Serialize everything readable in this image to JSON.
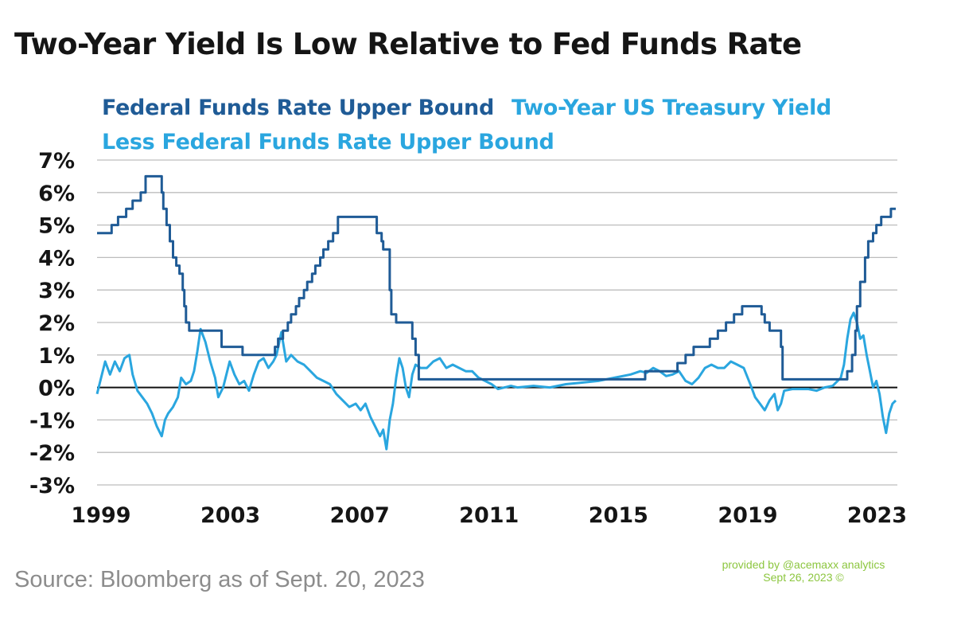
{
  "title": "Two-Year Yield Is Low Relative to Fed Funds Rate",
  "source": "Source: Bloomberg as of Sept. 20, 2023",
  "credit": {
    "line1": "provided by @acemaxx analytics",
    "line2": "Sept 26, 2023 ©",
    "color": "#8cc63f"
  },
  "chart_data": {
    "type": "line",
    "ylim": [
      -3,
      7
    ],
    "y_ticks": [
      7,
      6,
      5,
      4,
      3,
      2,
      1,
      0,
      -1,
      -2,
      -3
    ],
    "y_tick_labels": [
      "7%",
      "6%",
      "5%",
      "4%",
      "3%",
      "2%",
      "1%",
      "0%",
      "-1%",
      "-2%",
      "-3%"
    ],
    "xlim": [
      1999.0,
      2023.75
    ],
    "x_ticks": [
      1999,
      2003,
      2007,
      2011,
      2015,
      2019,
      2023
    ],
    "x_tick_labels": [
      "1999",
      "2003",
      "2007",
      "2011",
      "2015",
      "2019",
      "2023"
    ],
    "grid": true,
    "zero_line": true,
    "legend_position": "top-left",
    "series": [
      {
        "name": "Federal Funds Rate Upper Bound",
        "color": "#1f5b96",
        "step": true,
        "x": [
          1999.0,
          1999.45,
          1999.65,
          1999.9,
          2000.1,
          2000.35,
          2000.5,
          2001.0,
          2001.05,
          2001.15,
          2001.25,
          2001.35,
          2001.45,
          2001.55,
          2001.65,
          2001.7,
          2001.75,
          2001.85,
          2001.95,
          2002.85,
          2003.5,
          2004.5,
          2004.6,
          2004.75,
          2004.9,
          2005.0,
          2005.15,
          2005.25,
          2005.4,
          2005.5,
          2005.65,
          2005.75,
          2005.9,
          2006.0,
          2006.15,
          2006.3,
          2006.45,
          2007.65,
          2007.8,
          2007.85,
          2008.05,
          2008.1,
          2008.25,
          2008.75,
          2008.85,
          2008.95,
          2015.95,
          2016.95,
          2017.2,
          2017.45,
          2017.95,
          2018.2,
          2018.45,
          2018.7,
          2018.95,
          2019.55,
          2019.65,
          2019.8,
          2020.15,
          2020.2,
          2022.2,
          2022.35,
          2022.45,
          2022.5,
          2022.6,
          2022.75,
          2022.85,
          2023.0,
          2023.1,
          2023.25,
          2023.55,
          2023.7
        ],
        "y": [
          4.75,
          5.0,
          5.25,
          5.5,
          5.75,
          6.0,
          6.5,
          6.0,
          5.5,
          5.0,
          4.5,
          4.0,
          3.75,
          3.5,
          3.0,
          2.5,
          2.0,
          1.75,
          1.75,
          1.25,
          1.0,
          1.25,
          1.5,
          1.75,
          2.0,
          2.25,
          2.5,
          2.75,
          3.0,
          3.25,
          3.5,
          3.75,
          4.0,
          4.25,
          4.5,
          4.75,
          5.25,
          4.75,
          4.5,
          4.25,
          3.0,
          2.25,
          2.0,
          1.5,
          1.0,
          0.25,
          0.5,
          0.75,
          1.0,
          1.25,
          1.5,
          1.75,
          2.0,
          2.25,
          2.5,
          2.25,
          2.0,
          1.75,
          1.25,
          0.25,
          0.5,
          1.0,
          1.75,
          2.5,
          3.25,
          4.0,
          4.5,
          4.75,
          5.0,
          5.25,
          5.5,
          5.5
        ]
      },
      {
        "name": "Two-Year US Treasury Yield Less Federal Funds Rate Upper Bound",
        "color": "#2aa6df",
        "step": false,
        "x": [
          1999.0,
          1999.1,
          1999.25,
          1999.4,
          1999.55,
          1999.7,
          1999.85,
          2000.0,
          2000.1,
          2000.25,
          2000.4,
          2000.55,
          2000.7,
          2000.85,
          2001.0,
          2001.1,
          2001.2,
          2001.35,
          2001.5,
          2001.6,
          2001.75,
          2001.9,
          2002.0,
          2002.1,
          2002.2,
          2002.35,
          2002.5,
          2002.65,
          2002.75,
          2002.9,
          2003.1,
          2003.25,
          2003.4,
          2003.55,
          2003.7,
          2003.85,
          2004.0,
          2004.15,
          2004.3,
          2004.45,
          2004.55,
          2004.7,
          2004.85,
          2005.0,
          2005.2,
          2005.4,
          2005.6,
          2005.8,
          2006.0,
          2006.2,
          2006.4,
          2006.6,
          2006.8,
          2007.0,
          2007.15,
          2007.3,
          2007.45,
          2007.6,
          2007.75,
          2007.85,
          2007.95,
          2008.05,
          2008.15,
          2008.25,
          2008.35,
          2008.45,
          2008.55,
          2008.65,
          2008.75,
          2008.85,
          2009.0,
          2009.2,
          2009.4,
          2009.6,
          2009.8,
          2010.0,
          2010.2,
          2010.4,
          2010.6,
          2010.8,
          2011.0,
          2011.2,
          2011.4,
          2011.6,
          2011.8,
          2012.0,
          2012.5,
          2013.0,
          2013.5,
          2014.0,
          2014.5,
          2015.0,
          2015.5,
          2015.8,
          2016.0,
          2016.2,
          2016.4,
          2016.6,
          2016.8,
          2017.0,
          2017.2,
          2017.4,
          2017.6,
          2017.8,
          2018.0,
          2018.2,
          2018.4,
          2018.6,
          2018.8,
          2019.0,
          2019.2,
          2019.35,
          2019.5,
          2019.65,
          2019.8,
          2019.95,
          2020.05,
          2020.15,
          2020.25,
          2020.5,
          2020.75,
          2021.0,
          2021.25,
          2021.5,
          2021.75,
          2022.0,
          2022.1,
          2022.2,
          2022.3,
          2022.4,
          2022.5,
          2022.6,
          2022.7,
          2022.8,
          2022.9,
          2023.0,
          2023.1,
          2023.2,
          2023.3,
          2023.4,
          2023.5,
          2023.6,
          2023.7
        ],
        "y": [
          -0.2,
          0.2,
          0.8,
          0.4,
          0.8,
          0.5,
          0.9,
          1.0,
          0.4,
          -0.1,
          -0.3,
          -0.5,
          -0.8,
          -1.2,
          -1.5,
          -1.0,
          -0.8,
          -0.6,
          -0.3,
          0.3,
          0.1,
          0.2,
          0.5,
          1.1,
          1.8,
          1.4,
          0.8,
          0.3,
          -0.3,
          0.0,
          0.8,
          0.4,
          0.1,
          0.2,
          -0.1,
          0.4,
          0.8,
          0.9,
          0.6,
          0.8,
          1.0,
          1.7,
          0.8,
          1.0,
          0.8,
          0.7,
          0.5,
          0.3,
          0.2,
          0.1,
          -0.2,
          -0.4,
          -0.6,
          -0.5,
          -0.7,
          -0.5,
          -0.9,
          -1.2,
          -1.5,
          -1.3,
          -1.9,
          -1.0,
          -0.5,
          0.3,
          0.9,
          0.6,
          0.0,
          -0.3,
          0.4,
          0.7,
          0.6,
          0.6,
          0.8,
          0.9,
          0.6,
          0.7,
          0.6,
          0.5,
          0.5,
          0.3,
          0.2,
          0.1,
          -0.05,
          0.0,
          0.05,
          0.0,
          0.05,
          0.0,
          0.1,
          0.15,
          0.2,
          0.3,
          0.4,
          0.5,
          0.45,
          0.6,
          0.5,
          0.35,
          0.4,
          0.5,
          0.2,
          0.1,
          0.3,
          0.6,
          0.7,
          0.6,
          0.6,
          0.8,
          0.7,
          0.6,
          0.1,
          -0.3,
          -0.5,
          -0.7,
          -0.4,
          -0.2,
          -0.7,
          -0.5,
          -0.1,
          -0.05,
          -0.05,
          -0.05,
          -0.1,
          0.0,
          0.05,
          0.3,
          0.7,
          1.5,
          2.1,
          2.3,
          2.0,
          1.5,
          1.6,
          1.0,
          0.5,
          0.0,
          0.2,
          -0.2,
          -0.9,
          -1.4,
          -0.8,
          -0.5,
          -0.4
        ]
      }
    ]
  }
}
